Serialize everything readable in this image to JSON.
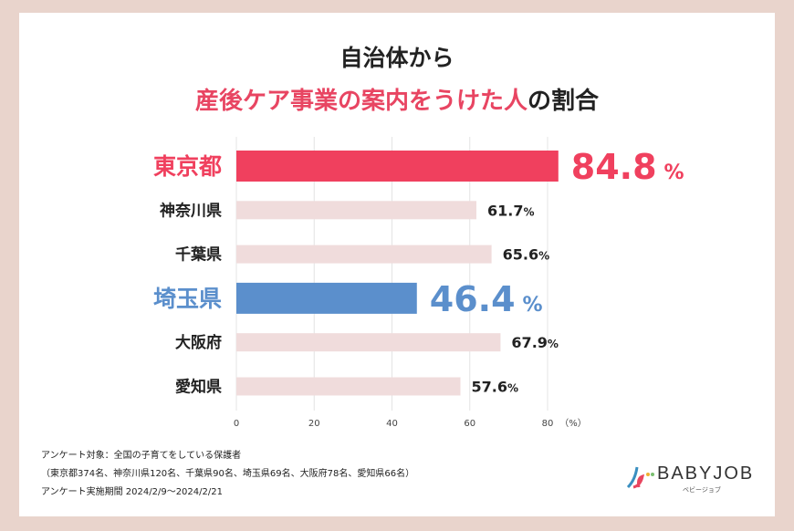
{
  "title_line1": "自治体から",
  "title_line2_highlight": "産後ケア事業の案内をうけた人",
  "title_line2_rest": "の割合",
  "chart_data": {
    "type": "bar",
    "orientation": "horizontal",
    "categories": [
      "東京都",
      "神奈川県",
      "千葉県",
      "埼玉県",
      "大阪府",
      "愛知県"
    ],
    "values": [
      84.8,
      61.7,
      65.6,
      46.4,
      67.9,
      57.6
    ],
    "value_labels": [
      "84.8",
      "61.7",
      "65.6",
      "46.4",
      "67.9",
      "57.6"
    ],
    "unit": "%",
    "xlim": [
      0,
      80
    ],
    "xticks": [
      "0",
      "20",
      "40",
      "60",
      "80"
    ],
    "xlabel_unit": "（%）",
    "grid": true,
    "highlight": {
      "東京都": "#f0405e",
      "埼玉県": "#5b8fcc"
    },
    "default_color": "#f0dcdc"
  },
  "footer": {
    "line1": "アンケート対象：全国の子育てをしている保護者",
    "line2": "（東京都374名、神奈川県120名、千葉県90名、埼玉県69名、大阪府78名、愛知県66名）",
    "line3": "アンケート実施期間 2024/2/9〜2024/2/21"
  },
  "logo": {
    "text": "BABYJOB",
    "sub": "ベビージョブ"
  }
}
